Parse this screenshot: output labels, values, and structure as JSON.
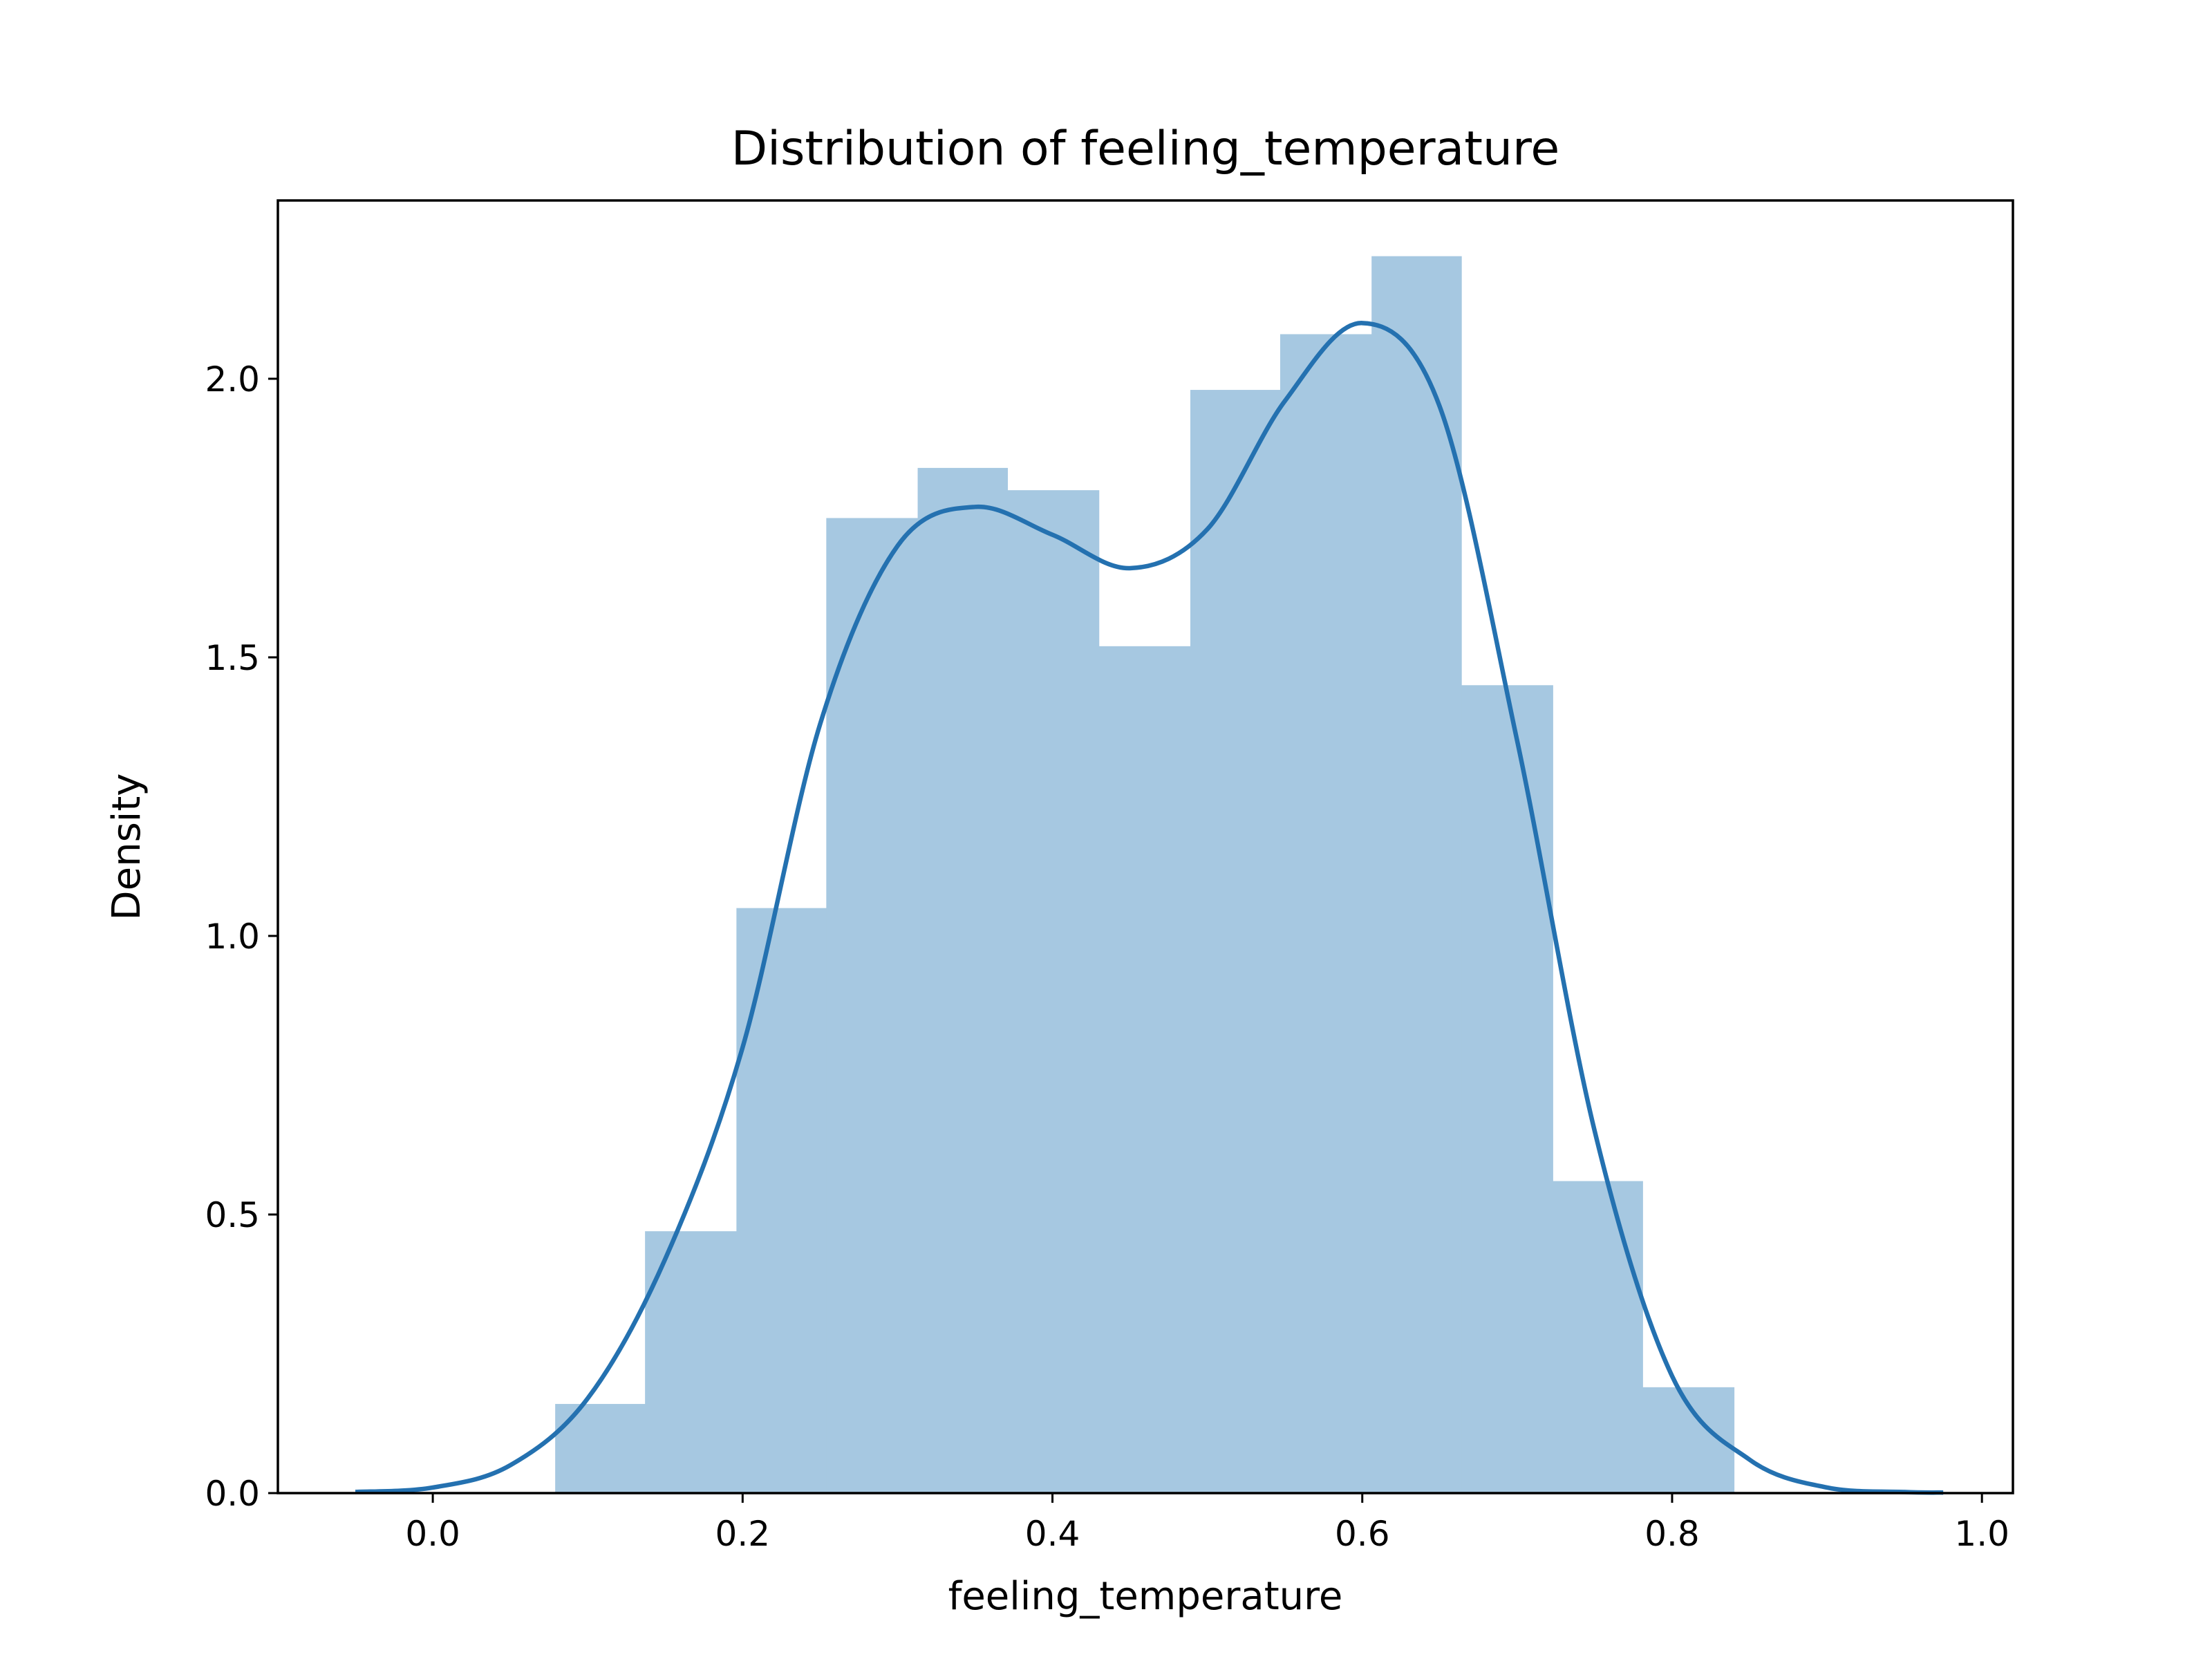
{
  "chart_data": {
    "type": "histogram",
    "title": "Distribution of feeling_temperature",
    "xlabel": "feeling_temperature",
    "ylabel": "Density",
    "xlim": [
      -0.1,
      1.02
    ],
    "ylim": [
      0,
      2.32
    ],
    "xticks": [
      0.0,
      0.2,
      0.4,
      0.6,
      0.8,
      1.0
    ],
    "xtick_labels": [
      "0.0",
      "0.2",
      "0.4",
      "0.6",
      "0.8",
      "1.0"
    ],
    "yticks": [
      0.0,
      0.5,
      1.0,
      1.5,
      2.0
    ],
    "ytick_labels": [
      "0.0",
      "0.5",
      "1.0",
      "1.5",
      "2.0"
    ],
    "grid": false,
    "bar_color": "#a6c8e1",
    "line_color": "#2471b0",
    "bins": [
      {
        "x0": 0.079,
        "x1": 0.137,
        "density": 0.16
      },
      {
        "x0": 0.137,
        "x1": 0.196,
        "density": 0.47
      },
      {
        "x0": 0.196,
        "x1": 0.254,
        "density": 1.05
      },
      {
        "x0": 0.254,
        "x1": 0.313,
        "density": 1.75
      },
      {
        "x0": 0.313,
        "x1": 0.371,
        "density": 1.84
      },
      {
        "x0": 0.371,
        "x1": 0.43,
        "density": 1.8
      },
      {
        "x0": 0.43,
        "x1": 0.489,
        "density": 1.52
      },
      {
        "x0": 0.489,
        "x1": 0.547,
        "density": 1.98
      },
      {
        "x0": 0.547,
        "x1": 0.606,
        "density": 2.08
      },
      {
        "x0": 0.606,
        "x1": 0.664,
        "density": 2.22
      },
      {
        "x0": 0.664,
        "x1": 0.723,
        "density": 1.45
      },
      {
        "x0": 0.723,
        "x1": 0.781,
        "density": 0.56
      },
      {
        "x0": 0.781,
        "x1": 0.84,
        "density": 0.19
      }
    ],
    "kde": {
      "x": [
        -0.05,
        0.0,
        0.05,
        0.1,
        0.15,
        0.2,
        0.25,
        0.3,
        0.35,
        0.4,
        0.45,
        0.5,
        0.55,
        0.6,
        0.65,
        0.7,
        0.75,
        0.8,
        0.85,
        0.9,
        0.95,
        0.975
      ],
      "y": [
        0.002,
        0.01,
        0.05,
        0.17,
        0.42,
        0.8,
        1.38,
        1.7,
        1.77,
        1.72,
        1.66,
        1.73,
        1.96,
        2.1,
        1.95,
        1.35,
        0.65,
        0.21,
        0.06,
        0.01,
        0.002,
        0.001
      ]
    }
  }
}
